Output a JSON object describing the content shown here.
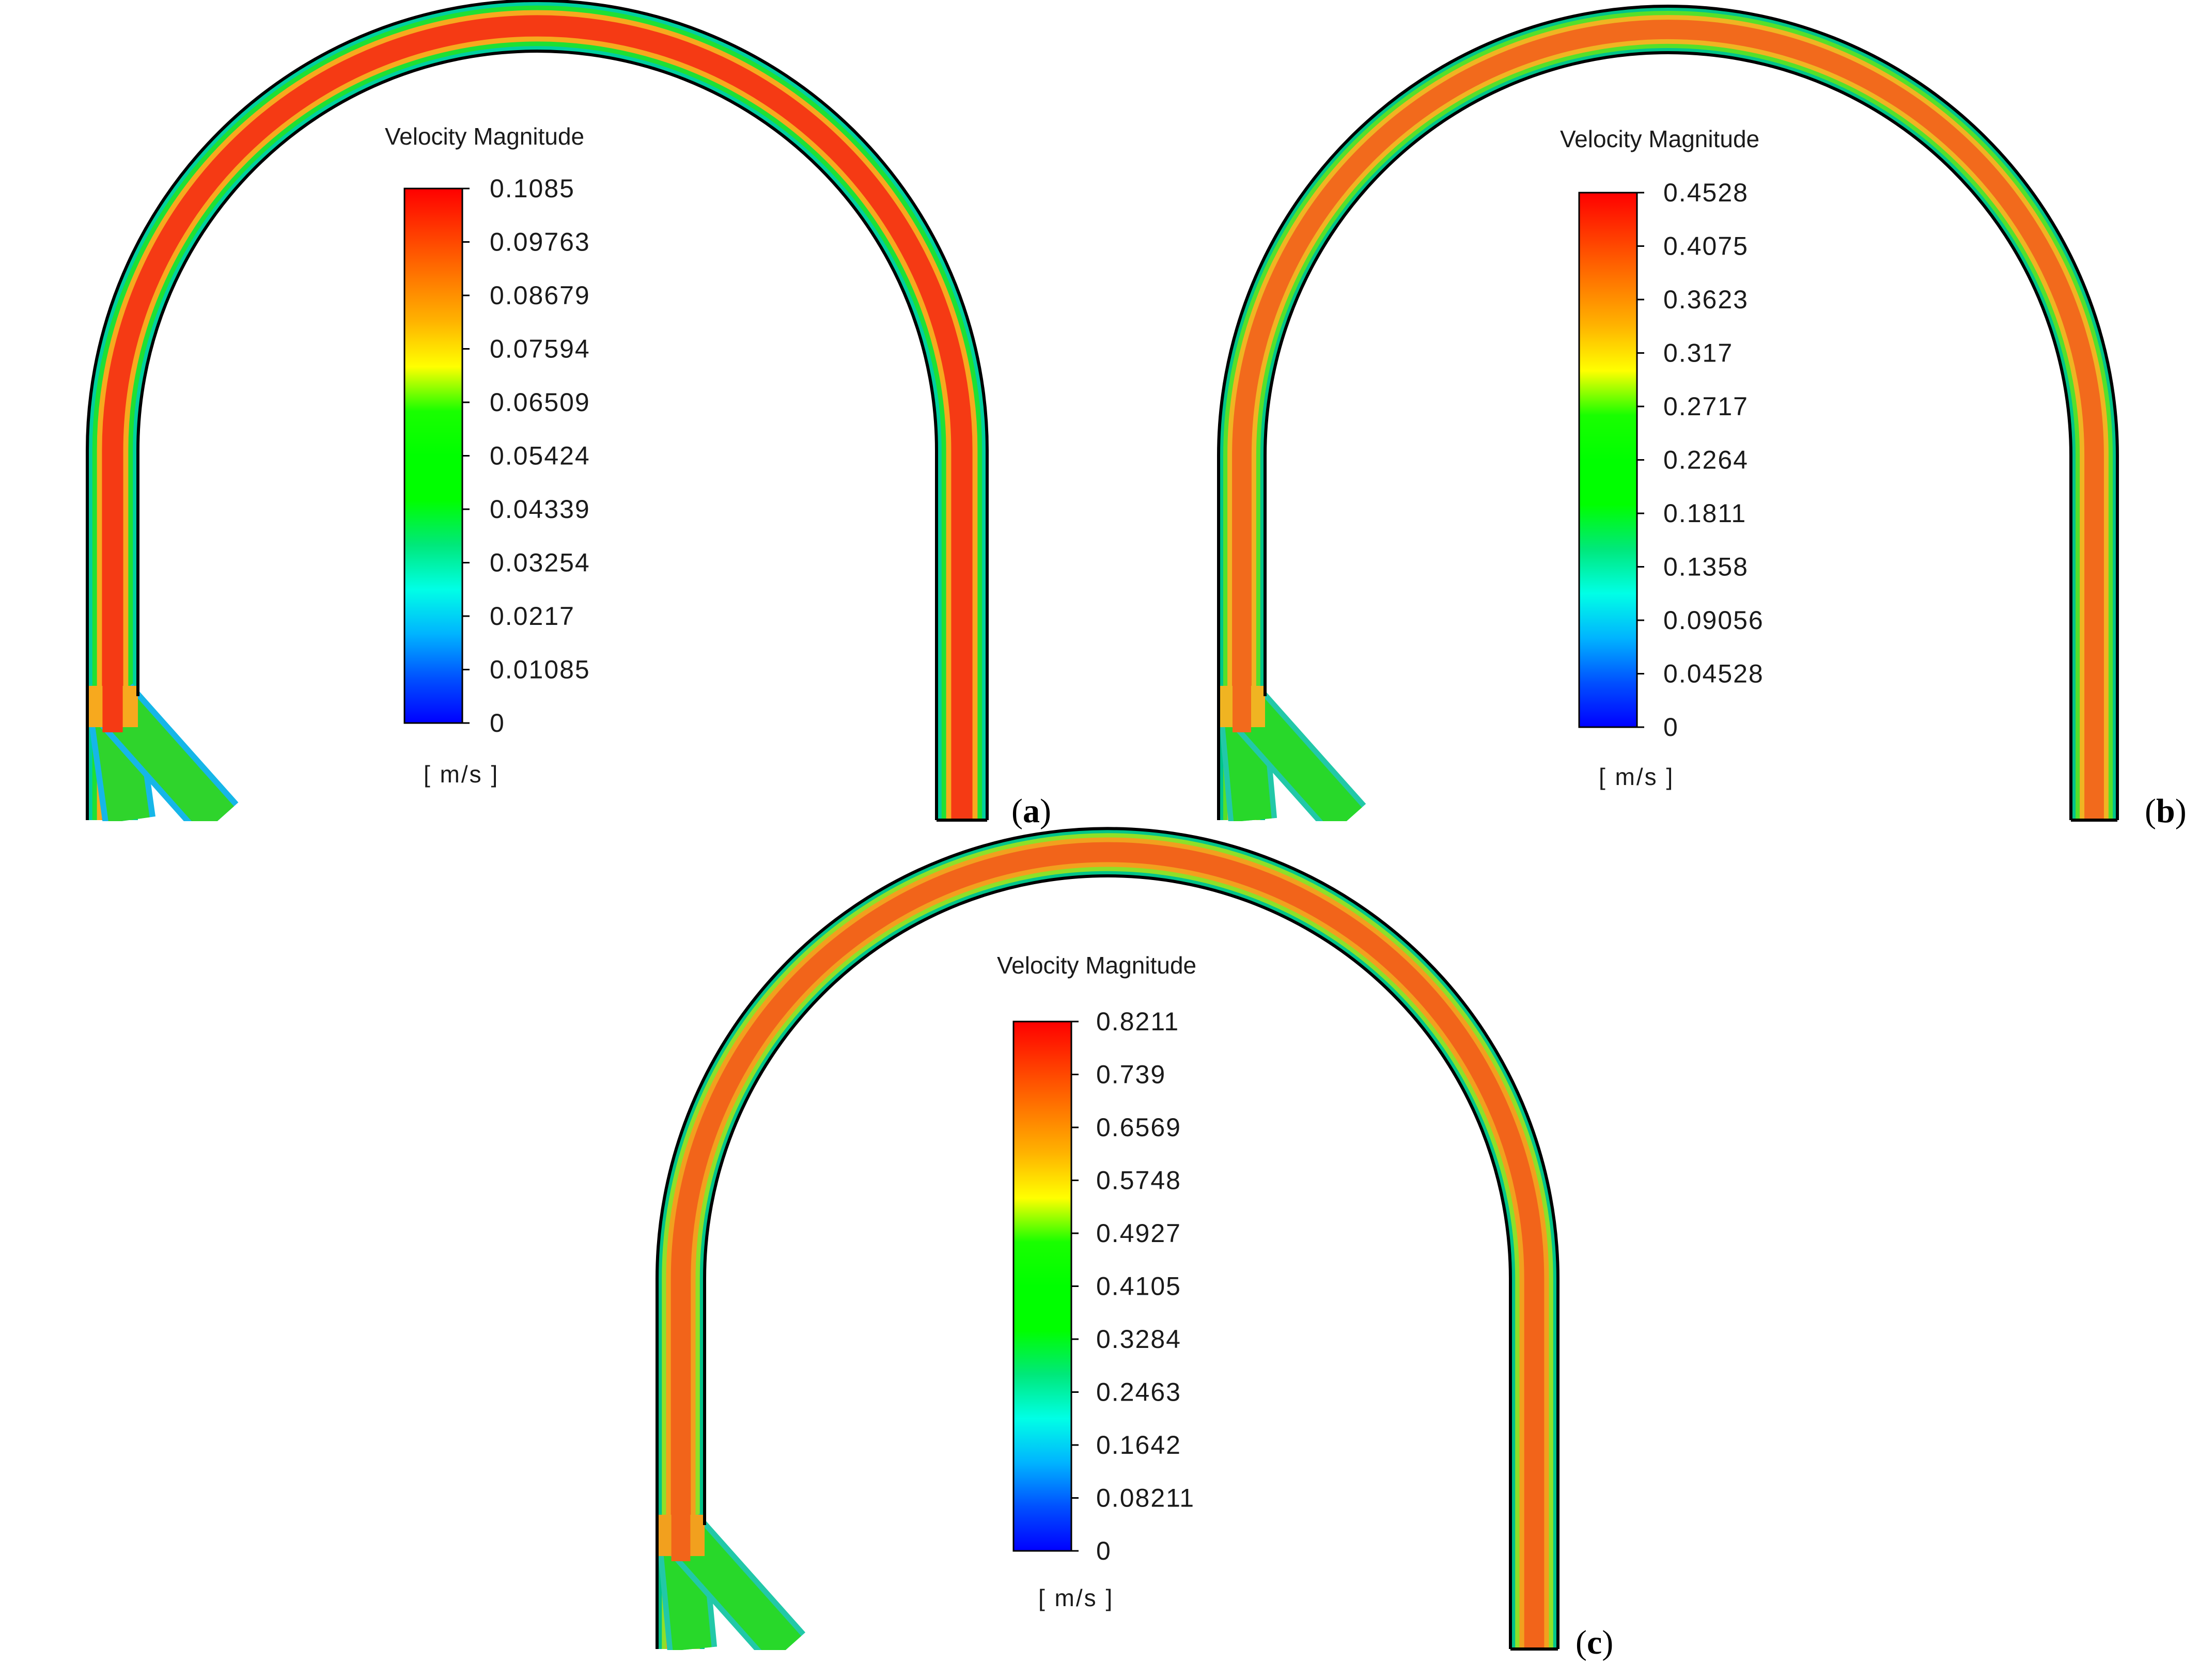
{
  "panels": [
    {
      "id": "a",
      "label": "a",
      "legend_title": "Velocity Magnitude",
      "unit": "[ m/s ]",
      "ticks": [
        "0.1085",
        "0.09763",
        "0.08679",
        "0.07594",
        "0.06509",
        "0.05424",
        "0.04339",
        "0.03254",
        "0.0217",
        "0.01085",
        "0"
      ],
      "max": 0.1085,
      "colors": {
        "wall": "#00cfa0",
        "near_wall": "#1fe033",
        "ring": "#f7a91e",
        "core": "#f53a14",
        "inlet": "#2fd42c",
        "inlet_edge": "#16b6e8"
      }
    },
    {
      "id": "b",
      "label": "b",
      "legend_title": "Velocity Magnitude",
      "unit": "[ m/s ]",
      "ticks": [
        "0.4528",
        "0.4075",
        "0.3623",
        "0.317",
        "0.2717",
        "0.2264",
        "0.1811",
        "0.1358",
        "0.09056",
        "0.04528",
        "0"
      ],
      "max": 0.4528,
      "colors": {
        "wall": "#00c48a",
        "near_wall": "#55e02a",
        "ring": "#f0b422",
        "core": "#f26a1c",
        "inlet": "#28d82a",
        "inlet_edge": "#22c8a8"
      }
    },
    {
      "id": "c",
      "label": "c",
      "legend_title": "Velocity Magnitude",
      "unit": "[ m/s ]",
      "ticks": [
        "0.8211",
        "0.739",
        "0.6569",
        "0.5748",
        "0.4927",
        "0.4105",
        "0.3284",
        "0.2463",
        "0.1642",
        "0.08211",
        "0"
      ],
      "max": 0.8211,
      "colors": {
        "wall": "#00c48a",
        "near_wall": "#8ee028",
        "ring": "#f2a01e",
        "core": "#f2641a",
        "inlet": "#28d82a",
        "inlet_edge": "#22c8a8"
      }
    }
  ],
  "colormap": [
    "#0000ff",
    "#0050ff",
    "#00b4ff",
    "#00ffe6",
    "#00e87a",
    "#00ff00",
    "#00ff00",
    "#19ff00",
    "#ffff00",
    "#ffb400",
    "#ff7800",
    "#ff3c00",
    "#ff0000"
  ]
}
